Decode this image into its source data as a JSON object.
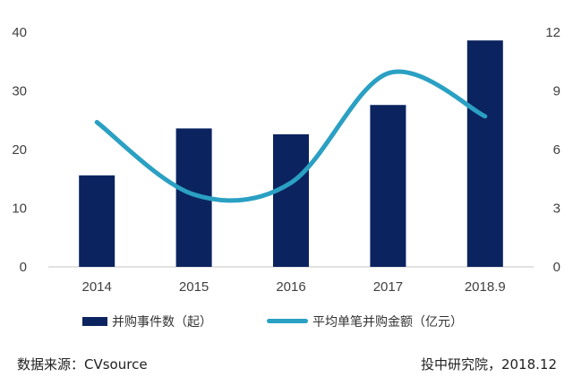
{
  "chart_data": {
    "type": "bar+line",
    "categories": [
      "2014",
      "2015",
      "2016",
      "2017",
      "2018.9"
    ],
    "series": [
      {
        "name": "并购事件数（起）",
        "type": "bar",
        "axis": "left",
        "color": "#0b2460",
        "values": [
          15.6,
          23.6,
          22.6,
          27.6,
          38.6
        ]
      },
      {
        "name": "平均单笔并购金额（亿元）",
        "type": "line",
        "axis": "right",
        "color": "#2aa0c3",
        "values": [
          7.4,
          3.7,
          4.3,
          9.9,
          7.7
        ]
      }
    ],
    "y_left": {
      "min": 0,
      "max": 40,
      "ticks": [
        "0",
        "10",
        "20",
        "30",
        "40"
      ]
    },
    "y_right": {
      "min": 0,
      "max": 12,
      "ticks": [
        "0",
        "3",
        "6",
        "9",
        "12"
      ]
    },
    "grid": false,
    "legend_position": "bottom"
  },
  "source_left": "数据来源：CVsource",
  "source_right": "投中研究院，2018.12"
}
